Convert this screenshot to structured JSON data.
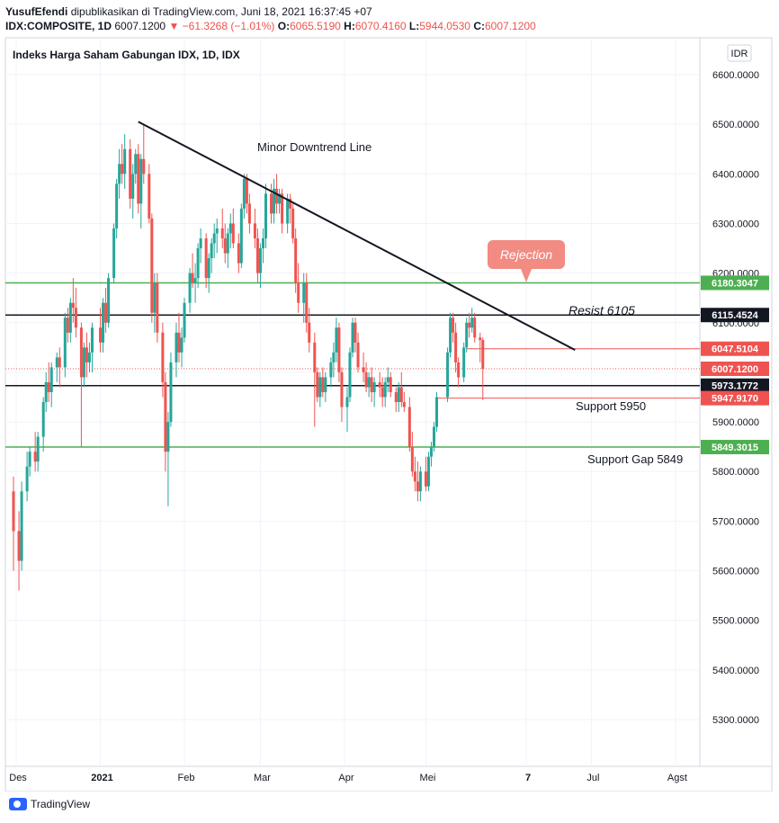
{
  "header": {
    "author": "YusufEfendi",
    "published": "dipublikasikan di TradingView.com, Juni 18, 2021 16:37:45 +07",
    "symbol": "IDX:COMPOSITE, 1D",
    "last": "6007.1200",
    "change": "▼ −61.3268 (−1.01%)",
    "o_label": "O:",
    "o": "6065.5190",
    "h_label": "H:",
    "h": "6070.4160",
    "l_label": "L:",
    "l": "5944.0530",
    "c_label": "C:",
    "c": "6007.1200"
  },
  "legend_title": "Indeks Harga Saham Gabungan IDX, 1D, IDX",
  "currency_button": "IDR",
  "footer_brand": "TradingView",
  "colors": {
    "up": "#26a69a",
    "down": "#ef5350",
    "green_line": "#4caf50",
    "black": "#131722",
    "grid": "#f0f3fa"
  },
  "chart_data": {
    "type": "candlestick",
    "y_range": [
      5200,
      6700
    ],
    "y_ticks": [
      5300,
      5400,
      5500,
      5600,
      5700,
      5800,
      5900,
      6000,
      6100,
      6200,
      6300,
      6400,
      6500,
      6600
    ],
    "y_tick_labels": [
      "5300.0000",
      "5400.0000",
      "5500.0000",
      "5600.0000",
      "5700.0000",
      "5800.0000",
      "5900.0000",
      "6000.0000",
      "6100.0000",
      "6200.0000",
      "6300.0000",
      "6400.0000",
      "6500.0000",
      "6600.0000"
    ],
    "x_labels": [
      "Des",
      "2021",
      "Feb",
      "Mar",
      "Apr",
      "Mei",
      "7",
      "Jul",
      "Agst"
    ],
    "x_label_days": [
      0,
      31,
      62,
      90,
      121,
      151,
      188,
      212,
      243
    ],
    "x_range_days": [
      -2,
      250
    ],
    "candles": [
      [
        -1,
        5760,
        5790,
        5600,
        5680
      ],
      [
        1,
        5680,
        5720,
        5560,
        5620
      ],
      [
        2,
        5620,
        5780,
        5600,
        5760
      ],
      [
        4,
        5760,
        5840,
        5740,
        5810
      ],
      [
        5,
        5810,
        5850,
        5790,
        5840
      ],
      [
        7,
        5840,
        5880,
        5800,
        5820
      ],
      [
        8,
        5820,
        5880,
        5800,
        5870
      ],
      [
        10,
        5870,
        5950,
        5840,
        5940
      ],
      [
        11,
        5940,
        6000,
        5920,
        5980
      ],
      [
        12,
        5980,
        6020,
        5940,
        5960
      ],
      [
        13,
        5960,
        6020,
        5930,
        6010
      ],
      [
        15,
        6010,
        6040,
        5980,
        6030
      ],
      [
        16,
        6030,
        6050,
        5970,
        6010
      ],
      [
        18,
        6010,
        6120,
        5990,
        6110
      ],
      [
        19,
        6110,
        6130,
        6060,
        6080
      ],
      [
        20,
        6080,
        6150,
        6060,
        6140
      ],
      [
        21,
        6140,
        6190,
        6100,
        6130
      ],
      [
        22,
        6130,
        6170,
        6070,
        6090
      ],
      [
        24,
        6090,
        6100,
        5850,
        5990
      ],
      [
        25,
        5990,
        6060,
        5970,
        6050
      ],
      [
        26,
        6050,
        6080,
        5990,
        6020
      ],
      [
        27,
        6020,
        6060,
        6000,
        6040
      ],
      [
        28,
        6040,
        6100,
        6000,
        6090
      ],
      [
        31,
        6090,
        6130,
        6040,
        6060
      ],
      [
        32,
        6060,
        6150,
        6040,
        6140
      ],
      [
        33,
        6140,
        6170,
        6080,
        6100
      ],
      [
        34,
        6100,
        6200,
        6090,
        6190
      ],
      [
        36,
        6190,
        6300,
        6180,
        6290
      ],
      [
        37,
        6290,
        6390,
        6270,
        6380
      ],
      [
        38,
        6380,
        6450,
        6350,
        6420
      ],
      [
        39,
        6420,
        6460,
        6380,
        6400
      ],
      [
        40,
        6400,
        6480,
        6370,
        6450
      ],
      [
        42,
        6450,
        6470,
        6330,
        6350
      ],
      [
        43,
        6350,
        6420,
        6310,
        6400
      ],
      [
        44,
        6400,
        6450,
        6380,
        6440
      ],
      [
        45,
        6440,
        6460,
        6320,
        6340
      ],
      [
        46,
        6340,
        6440,
        6290,
        6430
      ],
      [
        47,
        6430,
        6500,
        6380,
        6400
      ],
      [
        49,
        6400,
        6420,
        6300,
        6310
      ],
      [
        50,
        6310,
        6320,
        6100,
        6120
      ],
      [
        51,
        6120,
        6200,
        6080,
        6180
      ],
      [
        52,
        6180,
        6200,
        6060,
        6080
      ],
      [
        54,
        6080,
        6100,
        5950,
        5980
      ],
      [
        55,
        5980,
        6000,
        5800,
        5840
      ],
      [
        56,
        5840,
        5920,
        5730,
        5900
      ],
      [
        57,
        5900,
        6040,
        5890,
        6020
      ],
      [
        59,
        6020,
        6100,
        5990,
        6080
      ],
      [
        60,
        6080,
        6120,
        6020,
        6040
      ],
      [
        61,
        6040,
        6090,
        6010,
        6070
      ],
      [
        62,
        6070,
        6150,
        6060,
        6140
      ],
      [
        64,
        6140,
        6210,
        6120,
        6200
      ],
      [
        65,
        6200,
        6240,
        6170,
        6180
      ],
      [
        66,
        6180,
        6220,
        6140,
        6190
      ],
      [
        67,
        6190,
        6260,
        6170,
        6250
      ],
      [
        68,
        6250,
        6290,
        6220,
        6270
      ],
      [
        70,
        6270,
        6280,
        6170,
        6190
      ],
      [
        71,
        6190,
        6240,
        6160,
        6230
      ],
      [
        72,
        6230,
        6270,
        6200,
        6260
      ],
      [
        73,
        6260,
        6300,
        6230,
        6280
      ],
      [
        74,
        6280,
        6310,
        6240,
        6290
      ],
      [
        76,
        6290,
        6330,
        6250,
        6270
      ],
      [
        77,
        6270,
        6300,
        6220,
        6240
      ],
      [
        78,
        6240,
        6290,
        6210,
        6280
      ],
      [
        79,
        6280,
        6320,
        6250,
        6300
      ],
      [
        80,
        6300,
        6330,
        6250,
        6260
      ],
      [
        82,
        6260,
        6280,
        6200,
        6220
      ],
      [
        83,
        6220,
        6340,
        6210,
        6330
      ],
      [
        84,
        6330,
        6400,
        6310,
        6390
      ],
      [
        85,
        6390,
        6400,
        6320,
        6340
      ],
      [
        86,
        6340,
        6360,
        6280,
        6300
      ],
      [
        88,
        6300,
        6330,
        6250,
        6270
      ],
      [
        89,
        6270,
        6290,
        6180,
        6200
      ],
      [
        90,
        6200,
        6260,
        6170,
        6250
      ],
      [
        91,
        6250,
        6290,
        6220,
        6270
      ],
      [
        92,
        6270,
        6380,
        6250,
        6360
      ],
      [
        94,
        6360,
        6380,
        6300,
        6320
      ],
      [
        95,
        6320,
        6390,
        6300,
        6370
      ],
      [
        96,
        6370,
        6400,
        6320,
        6340
      ],
      [
        97,
        6340,
        6370,
        6320,
        6360
      ],
      [
        98,
        6360,
        6370,
        6280,
        6300
      ],
      [
        100,
        6300,
        6360,
        6280,
        6350
      ],
      [
        101,
        6350,
        6360,
        6300,
        6330
      ],
      [
        102,
        6330,
        6340,
        6260,
        6270
      ],
      [
        103,
        6270,
        6290,
        6160,
        6180
      ],
      [
        104,
        6180,
        6220,
        6120,
        6140
      ],
      [
        106,
        6140,
        6200,
        6100,
        6180
      ],
      [
        107,
        6180,
        6200,
        6080,
        6100
      ],
      [
        108,
        6100,
        6130,
        6040,
        6060
      ],
      [
        110,
        6060,
        6080,
        5890,
        6000
      ],
      [
        111,
        6000,
        6010,
        5940,
        5950
      ],
      [
        112,
        5950,
        6000,
        5930,
        5990
      ],
      [
        113,
        5990,
        6010,
        5950,
        5960
      ],
      [
        114,
        5960,
        6000,
        5940,
        5990
      ],
      [
        116,
        5990,
        6030,
        5970,
        6020
      ],
      [
        117,
        6020,
        6060,
        5990,
        6040
      ],
      [
        118,
        6040,
        6110,
        6020,
        6090
      ],
      [
        119,
        6090,
        6100,
        5980,
        6000
      ],
      [
        120,
        6000,
        6010,
        5900,
        5930
      ],
      [
        122,
        5930,
        5970,
        5880,
        5950
      ],
      [
        123,
        5950,
        6050,
        5940,
        6040
      ],
      [
        124,
        6040,
        6110,
        6030,
        6100
      ],
      [
        125,
        6100,
        6110,
        6040,
        6060
      ],
      [
        126,
        6060,
        6080,
        6000,
        6010
      ],
      [
        128,
        6010,
        6040,
        5980,
        6000
      ],
      [
        129,
        6000,
        6020,
        5960,
        5970
      ],
      [
        130,
        5970,
        6000,
        5950,
        5990
      ],
      [
        131,
        5990,
        6010,
        5940,
        5960
      ],
      [
        132,
        5960,
        5990,
        5930,
        5980
      ],
      [
        134,
        5980,
        6000,
        5950,
        5970
      ],
      [
        135,
        5970,
        5990,
        5930,
        5950
      ],
      [
        136,
        5950,
        5990,
        5930,
        5980
      ],
      [
        137,
        5980,
        6010,
        5960,
        5990
      ],
      [
        138,
        5990,
        6000,
        5950,
        5960
      ],
      [
        140,
        5960,
        5970,
        5920,
        5940
      ],
      [
        141,
        5940,
        5980,
        5920,
        5970
      ],
      [
        142,
        5970,
        6000,
        5930,
        5940
      ],
      [
        143,
        5940,
        5960,
        5920,
        5930
      ],
      [
        145,
        5930,
        5950,
        5840,
        5850
      ],
      [
        146,
        5850,
        5880,
        5790,
        5800
      ],
      [
        147,
        5800,
        5830,
        5760,
        5780
      ],
      [
        148,
        5780,
        5820,
        5740,
        5760
      ],
      [
        149,
        5760,
        5810,
        5740,
        5800
      ],
      [
        151,
        5800,
        5830,
        5760,
        5770
      ],
      [
        152,
        5770,
        5840,
        5760,
        5830
      ],
      [
        153,
        5830,
        5860,
        5810,
        5850
      ],
      [
        154,
        5850,
        5900,
        5840,
        5890
      ],
      [
        155,
        5890,
        5960,
        5880,
        5950
      ],
      [
        159,
        5950,
        6050,
        5940,
        6040
      ],
      [
        160,
        6040,
        6120,
        6030,
        6110
      ],
      [
        161,
        6110,
        6120,
        6060,
        6080
      ],
      [
        162,
        6080,
        6100,
        6000,
        6020
      ],
      [
        163,
        6020,
        6030,
        5970,
        5990
      ],
      [
        165,
        5990,
        6060,
        5980,
        6050
      ],
      [
        166,
        6050,
        6110,
        6040,
        6100
      ],
      [
        167,
        6100,
        6120,
        6070,
        6090
      ],
      [
        168,
        6090,
        6130,
        6080,
        6110
      ],
      [
        169,
        6110,
        6120,
        6060,
        6070
      ],
      [
        171,
        6070,
        6080,
        6020,
        6065
      ],
      [
        172,
        6065,
        6070,
        5944,
        6007
      ]
    ],
    "lines": [
      {
        "name": "Resist 6105",
        "kind": "horizontal",
        "value": 6115.4524,
        "color": "#131722",
        "label": "6115.4524"
      },
      {
        "name": "Support 5950",
        "kind": "horizontal",
        "value": 5973.1772,
        "color": "#131722",
        "label": "5973.1772"
      },
      {
        "name": "green-top",
        "kind": "horizontal",
        "value": 6180.3047,
        "color": "#4caf50",
        "label": "6180.3047"
      },
      {
        "name": "Support Gap 5849",
        "kind": "horizontal",
        "value": 5849.3015,
        "color": "#4caf50",
        "label": "5849.3015"
      }
    ],
    "price_labels": [
      {
        "value": 6047.5104,
        "text": "6047.5104",
        "color": "#ef5350"
      },
      {
        "value": 6007.12,
        "text": "6007.1200",
        "color": "#ef5350"
      },
      {
        "value": 5947.917,
        "text": "5947.9170",
        "color": "#ef5350"
      }
    ],
    "trendline": {
      "from": [
        45,
        6505
      ],
      "to": [
        206,
        6045
      ]
    },
    "annotations": {
      "downtrend": "Minor Downtrend Line",
      "rejection": "Rejection",
      "resist": "Resist 6105",
      "support": "Support 5950",
      "support_gap": "Support Gap 5849"
    }
  }
}
